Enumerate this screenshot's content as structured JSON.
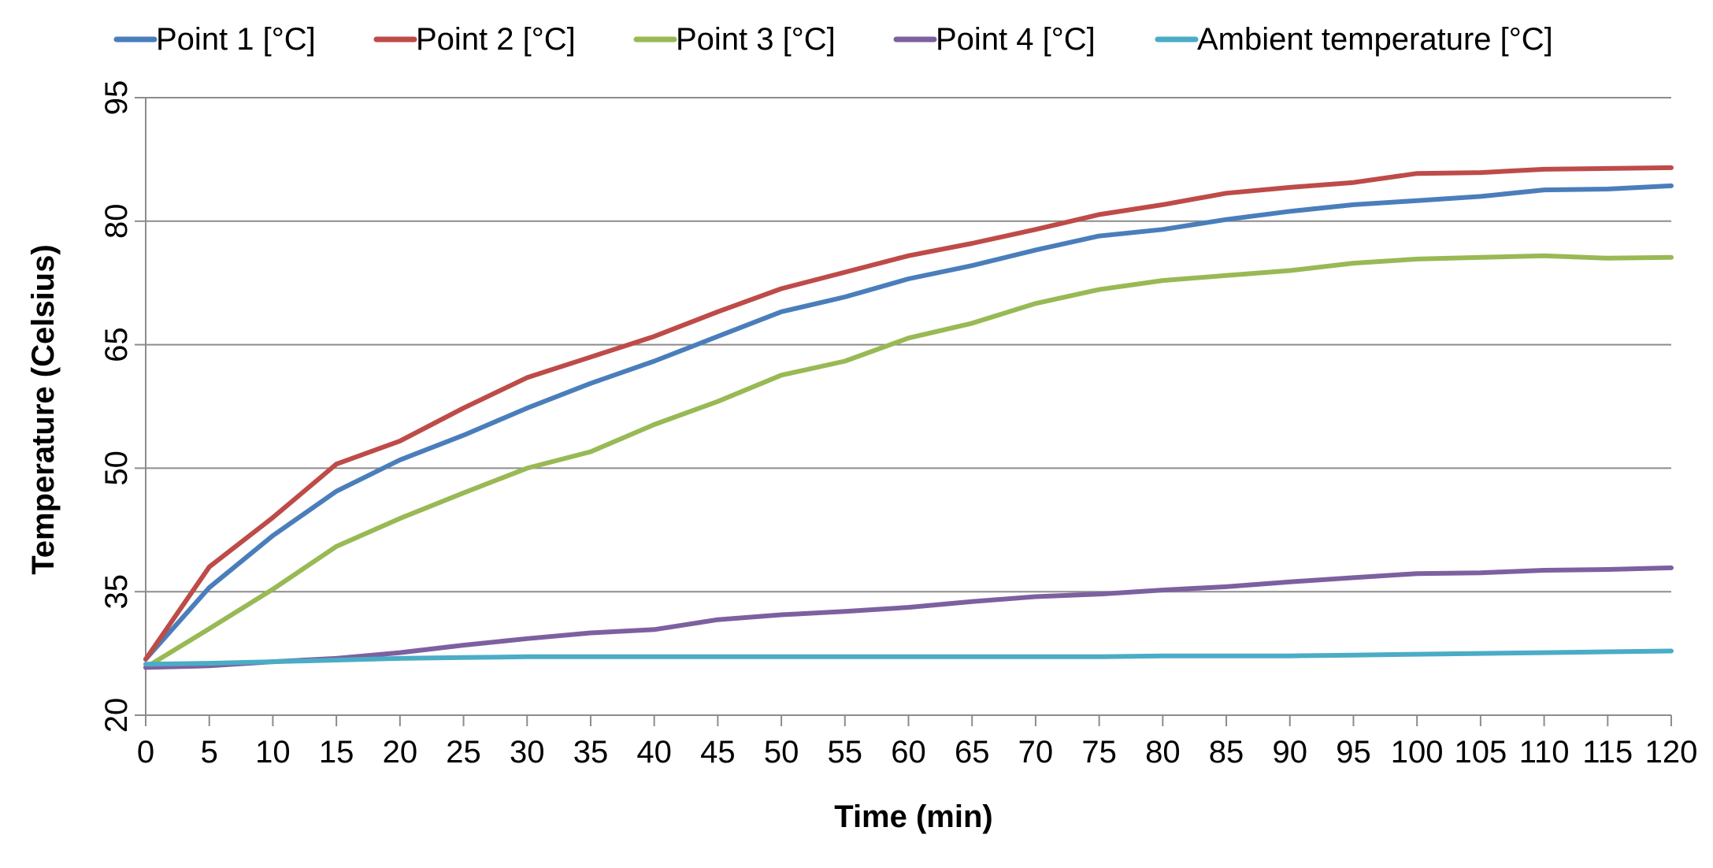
{
  "chart_data": {
    "type": "line",
    "title": "",
    "xlabel": "Time (min)",
    "ylabel": "Temperature (Celsius)",
    "x": [
      0,
      5,
      10,
      15,
      20,
      25,
      30,
      35,
      40,
      45,
      50,
      55,
      60,
      65,
      70,
      75,
      80,
      85,
      90,
      95,
      100,
      105,
      110,
      115,
      120
    ],
    "x_tick_labels": [
      "0",
      "5",
      "10",
      "15",
      "20",
      "25",
      "30",
      "35",
      "40",
      "45",
      "50",
      "55",
      "60",
      "65",
      "70",
      "75",
      "80",
      "85",
      "90",
      "95",
      "100",
      "105",
      "110",
      "115",
      "120"
    ],
    "xlim": [
      0,
      120
    ],
    "ylim": [
      20,
      95
    ],
    "y_ticks": [
      20,
      35,
      50,
      65,
      80,
      95
    ],
    "y_tick_labels": [
      "20",
      "35",
      "50",
      "65",
      "80",
      "95"
    ],
    "grid": "horizontal",
    "legend_position": "top",
    "series": [
      {
        "name": "Point 1 [°C]",
        "color": "#4A7EBB",
        "values": [
          26.8,
          35.5,
          41.8,
          47.2,
          51.0,
          54.0,
          57.3,
          60.3,
          63.0,
          66.0,
          69.0,
          70.8,
          73.0,
          74.6,
          76.5,
          78.2,
          79.0,
          80.2,
          81.2,
          82.0,
          82.5,
          83.0,
          83.8,
          83.9,
          84.3
        ]
      },
      {
        "name": "Point 2 [°C]",
        "color": "#BE4B48",
        "values": [
          26.8,
          38.0,
          44.0,
          50.5,
          53.3,
          57.3,
          61.0,
          63.5,
          66.0,
          69.0,
          71.8,
          73.8,
          75.8,
          77.3,
          79.0,
          80.8,
          82.0,
          83.4,
          84.1,
          84.7,
          85.8,
          85.9,
          86.3,
          86.4,
          86.5
        ]
      },
      {
        "name": "Point 3 [°C]",
        "color": "#98B954",
        "values": [
          25.8,
          30.5,
          35.3,
          40.5,
          43.9,
          47.0,
          50.0,
          52.0,
          55.3,
          58.1,
          61.3,
          63.0,
          65.8,
          67.6,
          70.0,
          71.7,
          72.8,
          73.4,
          74.0,
          74.9,
          75.4,
          75.6,
          75.8,
          75.5,
          75.6
        ]
      },
      {
        "name": "Point 4 [°C]",
        "color": "#7D60A0",
        "values": [
          25.8,
          26.0,
          26.5,
          26.9,
          27.6,
          28.5,
          29.3,
          30.0,
          30.4,
          31.6,
          32.2,
          32.6,
          33.1,
          33.8,
          34.4,
          34.7,
          35.2,
          35.6,
          36.2,
          36.7,
          37.2,
          37.3,
          37.6,
          37.7,
          37.9
        ]
      },
      {
        "name": "Ambient temperature [°C]",
        "color": "#4BACC6",
        "values": [
          26.2,
          26.3,
          26.5,
          26.7,
          26.9,
          27.0,
          27.1,
          27.1,
          27.1,
          27.1,
          27.1,
          27.1,
          27.1,
          27.1,
          27.1,
          27.1,
          27.2,
          27.2,
          27.2,
          27.3,
          27.4,
          27.5,
          27.6,
          27.7,
          27.8
        ]
      }
    ]
  }
}
